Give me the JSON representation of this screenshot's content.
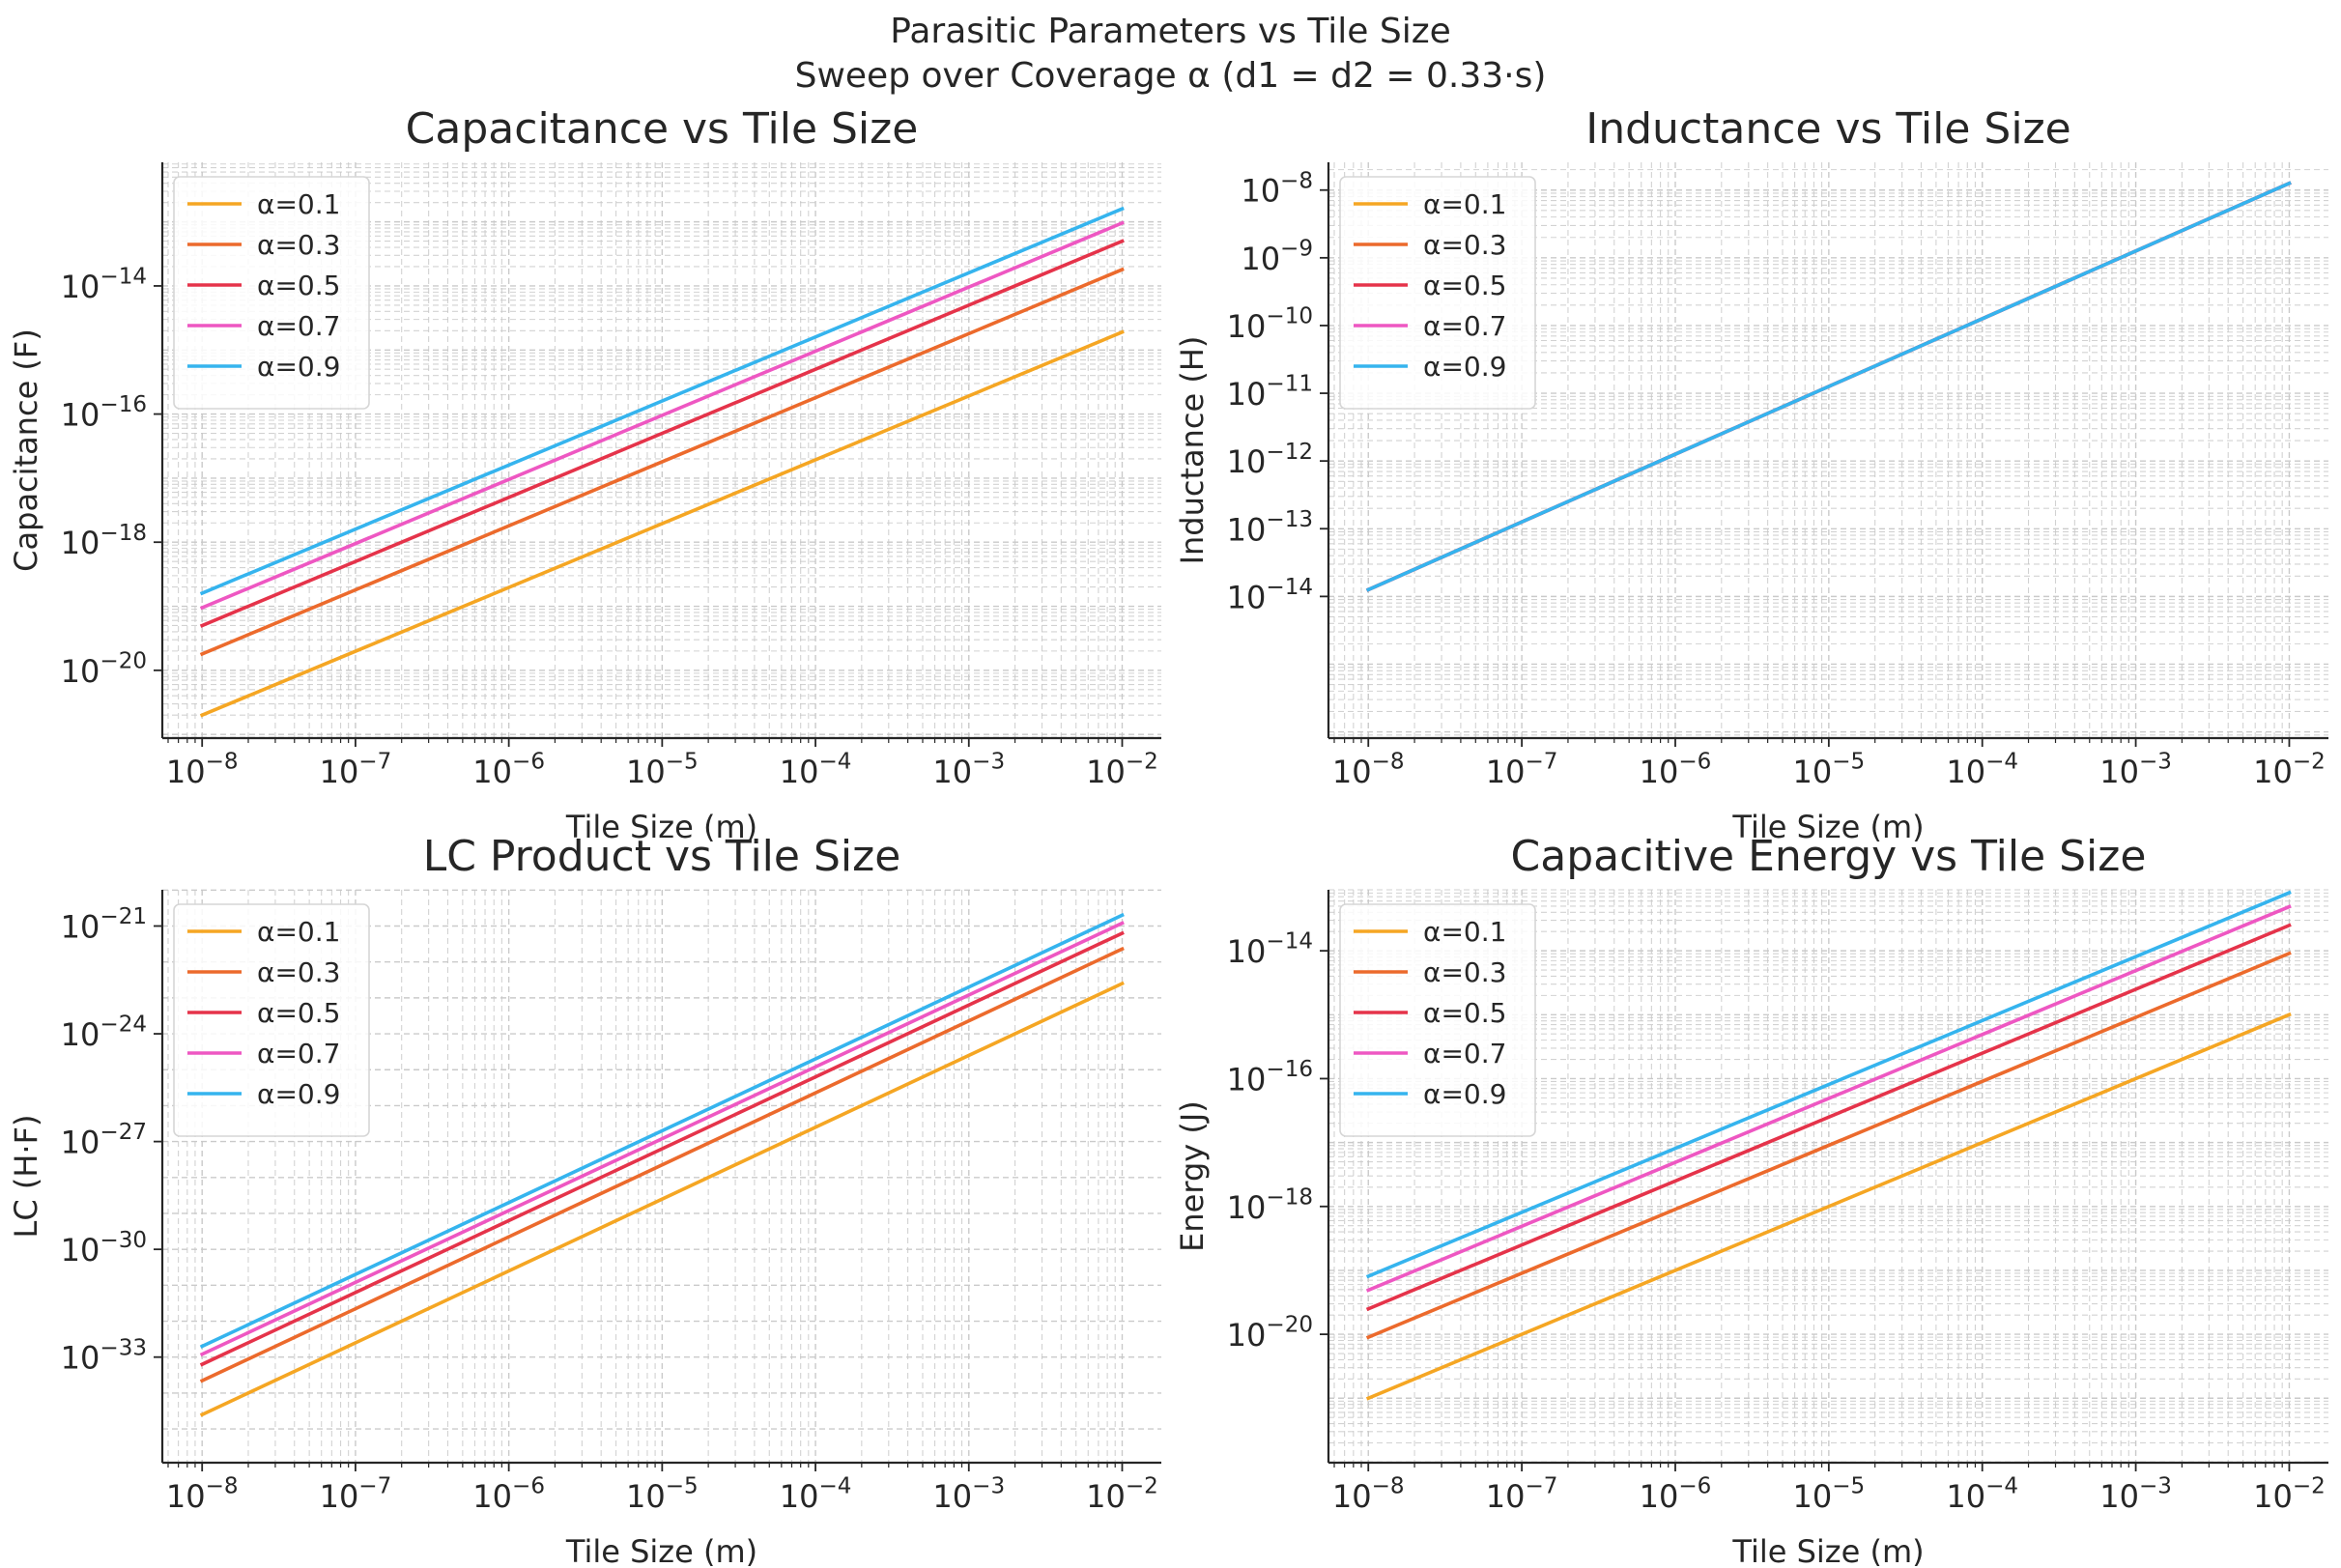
{
  "figure": {
    "suptitle_line1": "Parasitic Parameters vs Tile Size",
    "suptitle_line2": "Sweep over Coverage α (d1 = d2 = 0.33·s)"
  },
  "colors": {
    "α=0.1": "#f5a623",
    "α=0.3": "#ec6a2c",
    "α=0.5": "#e5334a",
    "α=0.7": "#ee57c2",
    "α=0.9": "#35b4ee",
    "grid": "#c8c8c8",
    "axis": "#262626"
  },
  "chart_data": [
    {
      "type": "line",
      "title": "Capacitance vs Tile Size",
      "xlabel": "Tile Size (m)",
      "ylabel": "Capacitance (F)",
      "xscale": "log",
      "yscale": "log",
      "xlim": [
        5.5e-09,
        0.018
      ],
      "ylim": [
        8.75e-22,
        8.5e-13
      ],
      "xticks": [
        1e-08,
        1e-07,
        1e-06,
        1e-05,
        0.0001,
        0.001,
        0.01
      ],
      "xtick_labels": [
        [
          "10",
          "−8"
        ],
        [
          "10",
          "−7"
        ],
        [
          "10",
          "−6"
        ],
        [
          "10",
          "−5"
        ],
        [
          "10",
          "−4"
        ],
        [
          "10",
          "−3"
        ],
        [
          "10",
          "−2"
        ]
      ],
      "yticks": [
        1e-20,
        1e-18,
        1e-16,
        1e-14
      ],
      "ytick_labels": [
        [
          "10",
          "−20"
        ],
        [
          "10",
          "−18"
        ],
        [
          "10",
          "−16"
        ],
        [
          "10",
          "−14"
        ]
      ],
      "grid": true,
      "legend": "upper left",
      "series": [
        {
          "name": "α=0.1",
          "x": [
            1e-08,
            0.01
          ],
          "y": [
            2e-21,
            1.9e-15
          ]
        },
        {
          "name": "α=0.3",
          "x": [
            1e-08,
            0.01
          ],
          "y": [
            1.8e-20,
            1.8e-14
          ]
        },
        {
          "name": "α=0.5",
          "x": [
            1e-08,
            0.01
          ],
          "y": [
            5e-20,
            5e-14
          ]
        },
        {
          "name": "α=0.7",
          "x": [
            1e-08,
            0.01
          ],
          "y": [
            9.5e-20,
            9.6e-14
          ]
        },
        {
          "name": "α=0.9",
          "x": [
            1e-08,
            0.01
          ],
          "y": [
            1.6e-19,
            1.6e-13
          ]
        }
      ]
    },
    {
      "type": "line",
      "title": "Inductance vs Tile Size",
      "xlabel": "Tile Size (m)",
      "ylabel": "Inductance (H)",
      "xscale": "log",
      "yscale": "log",
      "xlim": [
        5.5e-09,
        0.018
      ],
      "ylim": [
        8.1e-17,
        2.57e-08
      ],
      "xticks": [
        1e-08,
        1e-07,
        1e-06,
        1e-05,
        0.0001,
        0.001,
        0.01
      ],
      "xtick_labels": [
        [
          "10",
          "−8"
        ],
        [
          "10",
          "−7"
        ],
        [
          "10",
          "−6"
        ],
        [
          "10",
          "−5"
        ],
        [
          "10",
          "−4"
        ],
        [
          "10",
          "−3"
        ],
        [
          "10",
          "−2"
        ]
      ],
      "yticks": [
        1e-14,
        1e-13,
        1e-12,
        1e-11,
        1e-10,
        1e-09,
        1e-08
      ],
      "ytick_labels": [
        [
          "10",
          "−14"
        ],
        [
          "10",
          "−13"
        ],
        [
          "10",
          "−12"
        ],
        [
          "10",
          "−11"
        ],
        [
          "10",
          "−10"
        ],
        [
          "10",
          "−9"
        ],
        [
          "10",
          "−8"
        ]
      ],
      "grid": true,
      "legend": "upper left",
      "series": [
        {
          "name": "α=0.1",
          "x": [
            1e-08,
            0.01
          ],
          "y": [
            1.26e-14,
            1.26e-08
          ]
        },
        {
          "name": "α=0.3",
          "x": [
            1e-08,
            0.01
          ],
          "y": [
            1.26e-14,
            1.26e-08
          ]
        },
        {
          "name": "α=0.5",
          "x": [
            1e-08,
            0.01
          ],
          "y": [
            1.26e-14,
            1.26e-08
          ]
        },
        {
          "name": "α=0.7",
          "x": [
            1e-08,
            0.01
          ],
          "y": [
            1.26e-14,
            1.26e-08
          ]
        },
        {
          "name": "α=0.9",
          "x": [
            1e-08,
            0.01
          ],
          "y": [
            1.26e-14,
            1.26e-08
          ]
        }
      ]
    },
    {
      "type": "line",
      "title": "LC Product vs Tile Size",
      "xlabel": "Tile Size (m)",
      "ylabel": "LC (H·F)",
      "xscale": "log",
      "yscale": "log",
      "xlim": [
        5.5e-09,
        0.018
      ],
      "ylim": [
        1.15e-36,
        1.02e-20
      ],
      "xticks": [
        1e-08,
        1e-07,
        1e-06,
        1e-05,
        0.0001,
        0.001,
        0.01
      ],
      "xtick_labels": [
        [
          "10",
          "−8"
        ],
        [
          "10",
          "−7"
        ],
        [
          "10",
          "−6"
        ],
        [
          "10",
          "−5"
        ],
        [
          "10",
          "−4"
        ],
        [
          "10",
          "−3"
        ],
        [
          "10",
          "−2"
        ]
      ],
      "yticks": [
        1e-33,
        1e-30,
        1e-27,
        1e-24,
        1e-21
      ],
      "ytick_labels": [
        [
          "10",
          "−33"
        ],
        [
          "10",
          "−30"
        ],
        [
          "10",
          "−27"
        ],
        [
          "10",
          "−24"
        ],
        [
          "10",
          "−21"
        ]
      ],
      "grid": true,
      "legend": "upper left",
      "series": [
        {
          "name": "α=0.1",
          "x": [
            1e-08,
            0.01
          ],
          "y": [
            2.5e-35,
            2.5e-23
          ]
        },
        {
          "name": "α=0.3",
          "x": [
            1e-08,
            0.01
          ],
          "y": [
            2.2e-34,
            2.3e-22
          ]
        },
        {
          "name": "α=0.5",
          "x": [
            1e-08,
            0.01
          ],
          "y": [
            6.3e-34,
            6.3e-22
          ]
        },
        {
          "name": "α=0.7",
          "x": [
            1e-08,
            0.01
          ],
          "y": [
            1.2e-33,
            1.2e-21
          ]
        },
        {
          "name": "α=0.9",
          "x": [
            1e-08,
            0.01
          ],
          "y": [
            2e-33,
            2e-21
          ]
        }
      ]
    },
    {
      "type": "line",
      "title": "Capacitive Energy vs Tile Size",
      "xlabel": "Tile Size (m)",
      "ylabel": "Energy (J)",
      "xscale": "log",
      "yscale": "log",
      "xlim": [
        5.5e-09,
        0.018
      ],
      "ylim": [
        9.8e-23,
        9e-14
      ],
      "xticks": [
        1e-08,
        1e-07,
        1e-06,
        1e-05,
        0.0001,
        0.001,
        0.01
      ],
      "xtick_labels": [
        [
          "10",
          "−8"
        ],
        [
          "10",
          "−7"
        ],
        [
          "10",
          "−6"
        ],
        [
          "10",
          "−5"
        ],
        [
          "10",
          "−4"
        ],
        [
          "10",
          "−3"
        ],
        [
          "10",
          "−2"
        ]
      ],
      "yticks": [
        1e-20,
        1e-18,
        1e-16,
        1e-14
      ],
      "ytick_labels": [
        [
          "10",
          "−20"
        ],
        [
          "10",
          "−18"
        ],
        [
          "10",
          "−16"
        ],
        [
          "10",
          "−14"
        ]
      ],
      "grid": true,
      "legend": "upper left",
      "series": [
        {
          "name": "α=0.1",
          "x": [
            1e-08,
            0.01
          ],
          "y": [
            1e-21,
            1e-15
          ]
        },
        {
          "name": "α=0.3",
          "x": [
            1e-08,
            0.01
          ],
          "y": [
            9e-21,
            9.1e-15
          ]
        },
        {
          "name": "α=0.5",
          "x": [
            1e-08,
            0.01
          ],
          "y": [
            2.5e-20,
            2.5e-14
          ]
        },
        {
          "name": "α=0.7",
          "x": [
            1e-08,
            0.01
          ],
          "y": [
            4.9e-20,
            4.9e-14
          ]
        },
        {
          "name": "α=0.9",
          "x": [
            1e-08,
            0.01
          ],
          "y": [
            8.1e-20,
            8.1e-14
          ]
        }
      ]
    }
  ]
}
